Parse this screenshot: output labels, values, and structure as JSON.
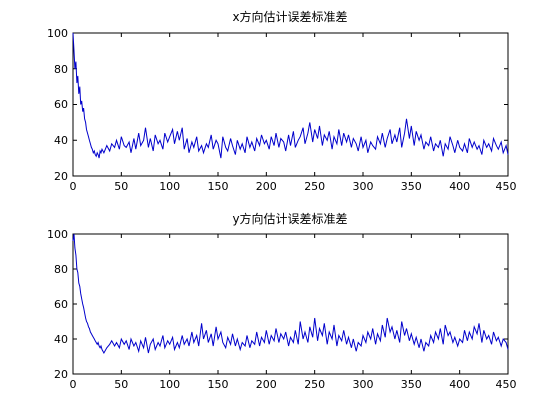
{
  "figure": {
    "background": "#ffffff"
  },
  "chart_data": [
    {
      "type": "line",
      "title": "x方向估计误差标准差",
      "xlim": [
        0,
        450
      ],
      "ylim": [
        20,
        100
      ],
      "x_ticks": [
        0,
        50,
        100,
        150,
        200,
        250,
        300,
        350,
        400,
        450
      ],
      "y_ticks": [
        20,
        40,
        60,
        80,
        100
      ],
      "x_tick_labels": [
        "0",
        "50",
        "100",
        "150",
        "200",
        "250",
        "300",
        "350",
        "400",
        "450"
      ],
      "y_tick_labels": [
        "20",
        "40",
        "60",
        "80",
        "100"
      ],
      "grid": false,
      "line_color": "#0000cc",
      "series": [
        {
          "x": [
            0,
            1,
            2,
            3,
            4,
            5,
            6,
            7,
            8,
            9,
            10,
            11,
            12,
            13,
            14,
            15,
            16,
            17,
            18,
            19,
            20,
            21,
            22,
            23,
            24,
            25,
            26,
            27,
            28,
            29,
            30,
            32,
            35,
            38,
            40,
            43,
            45,
            48,
            50,
            53,
            55,
            58,
            60,
            63,
            65,
            68,
            70,
            73,
            75,
            78,
            80,
            83,
            85,
            88,
            90,
            93,
            95,
            98,
            100,
            103,
            105,
            108,
            110,
            113,
            115,
            118,
            120,
            123,
            125,
            128,
            130,
            133,
            135,
            138,
            140,
            143,
            145,
            148,
            150,
            153,
            155,
            158,
            160,
            163,
            165,
            168,
            170,
            173,
            175,
            178,
            180,
            183,
            185,
            188,
            190,
            193,
            195,
            198,
            200,
            203,
            205,
            208,
            210,
            213,
            215,
            218,
            220,
            223,
            225,
            228,
            230,
            233,
            235,
            238,
            240,
            243,
            245,
            248,
            250,
            253,
            255,
            258,
            260,
            263,
            265,
            268,
            270,
            273,
            275,
            278,
            280,
            283,
            285,
            288,
            290,
            293,
            295,
            298,
            300,
            303,
            305,
            308,
            310,
            313,
            315,
            318,
            320,
            323,
            325,
            328,
            330,
            333,
            335,
            338,
            340,
            343,
            345,
            348,
            350,
            353,
            355,
            358,
            360,
            363,
            365,
            368,
            370,
            373,
            375,
            378,
            380,
            383,
            385,
            388,
            390,
            393,
            395,
            398,
            400,
            403,
            405,
            408,
            410,
            413,
            415,
            418,
            420,
            423,
            425,
            428,
            430,
            433,
            435,
            438,
            440,
            443,
            445,
            448,
            450
          ],
          "y": [
            100,
            90,
            80,
            84,
            72,
            76,
            66,
            70,
            60,
            62,
            56,
            58,
            52,
            50,
            46,
            44,
            42,
            40,
            38,
            36,
            35,
            33,
            34,
            32,
            31,
            33,
            32,
            30,
            34,
            33,
            35,
            33,
            37,
            34,
            38,
            36,
            40,
            35,
            42,
            37,
            36,
            39,
            33,
            41,
            35,
            44,
            37,
            40,
            47,
            36,
            41,
            34,
            43,
            38,
            40,
            35,
            44,
            39,
            42,
            46,
            38,
            45,
            40,
            47,
            35,
            41,
            33,
            39,
            36,
            42,
            34,
            37,
            33,
            38,
            36,
            43,
            35,
            40,
            38,
            30,
            42,
            36,
            34,
            41,
            37,
            32,
            40,
            35,
            38,
            33,
            42,
            36,
            39,
            34,
            41,
            37,
            43,
            38,
            40,
            35,
            42,
            37,
            44,
            36,
            41,
            39,
            34,
            43,
            37,
            45,
            36,
            40,
            42,
            47,
            38,
            44,
            50,
            39,
            46,
            41,
            48,
            37,
            43,
            40,
            45,
            35,
            42,
            38,
            46,
            37,
            44,
            39,
            43,
            36,
            41,
            38,
            34,
            42,
            36,
            40,
            33,
            39,
            37,
            35,
            42,
            38,
            44,
            36,
            41,
            46,
            38,
            43,
            39,
            47,
            36,
            44,
            52,
            41,
            48,
            37,
            45,
            40,
            43,
            35,
            39,
            37,
            42,
            34,
            38,
            36,
            40,
            31,
            38,
            35,
            42,
            37,
            33,
            40,
            36,
            34,
            38,
            33,
            41,
            36,
            39,
            35,
            37,
            32,
            40,
            36,
            38,
            34,
            41,
            37,
            35,
            39,
            33,
            37,
            32
          ]
        }
      ]
    },
    {
      "type": "line",
      "title": "y方向估计误差标准差",
      "xlim": [
        0,
        450
      ],
      "ylim": [
        20,
        100
      ],
      "x_ticks": [
        0,
        50,
        100,
        150,
        200,
        250,
        300,
        350,
        400,
        450
      ],
      "y_ticks": [
        20,
        40,
        60,
        80,
        100
      ],
      "x_tick_labels": [
        "0",
        "50",
        "100",
        "150",
        "200",
        "250",
        "300",
        "350",
        "400",
        "450"
      ],
      "y_tick_labels": [
        "20",
        "40",
        "60",
        "80",
        "100"
      ],
      "grid": false,
      "line_color": "#0000cc",
      "series": [
        {
          "x": [
            0,
            1,
            2,
            3,
            4,
            5,
            6,
            7,
            8,
            9,
            10,
            11,
            12,
            13,
            14,
            15,
            16,
            17,
            18,
            19,
            20,
            21,
            22,
            23,
            24,
            25,
            26,
            27,
            28,
            29,
            30,
            32,
            35,
            38,
            40,
            43,
            45,
            48,
            50,
            53,
            55,
            58,
            60,
            63,
            65,
            68,
            70,
            73,
            75,
            78,
            80,
            83,
            85,
            88,
            90,
            93,
            95,
            98,
            100,
            103,
            105,
            108,
            110,
            113,
            115,
            118,
            120,
            123,
            125,
            128,
            130,
            133,
            135,
            138,
            140,
            143,
            145,
            148,
            150,
            153,
            155,
            158,
            160,
            163,
            165,
            168,
            170,
            173,
            175,
            178,
            180,
            183,
            185,
            188,
            190,
            193,
            195,
            198,
            200,
            203,
            205,
            208,
            210,
            213,
            215,
            218,
            220,
            223,
            225,
            228,
            230,
            233,
            235,
            238,
            240,
            243,
            245,
            248,
            250,
            253,
            255,
            258,
            260,
            263,
            265,
            268,
            270,
            273,
            275,
            278,
            280,
            283,
            285,
            288,
            290,
            293,
            295,
            298,
            300,
            303,
            305,
            308,
            310,
            313,
            315,
            318,
            320,
            323,
            325,
            328,
            330,
            333,
            335,
            338,
            340,
            343,
            345,
            348,
            350,
            353,
            355,
            358,
            360,
            363,
            365,
            368,
            370,
            373,
            375,
            378,
            380,
            383,
            385,
            388,
            390,
            393,
            395,
            398,
            400,
            403,
            405,
            408,
            410,
            413,
            415,
            418,
            420,
            423,
            425,
            428,
            430,
            433,
            435,
            438,
            440,
            443,
            445,
            448,
            450
          ],
          "y": [
            96,
            100,
            92,
            88,
            80,
            78,
            72,
            70,
            66,
            63,
            60,
            58,
            55,
            52,
            50,
            49,
            47,
            46,
            44,
            43,
            42,
            41,
            40,
            39,
            38,
            37,
            38,
            36,
            35,
            36,
            34,
            32,
            35,
            37,
            39,
            36,
            38,
            35,
            40,
            37,
            39,
            34,
            40,
            36,
            38,
            33,
            39,
            35,
            41,
            32,
            37,
            40,
            34,
            38,
            36,
            42,
            35,
            39,
            37,
            41,
            34,
            38,
            35,
            42,
            37,
            40,
            36,
            44,
            38,
            42,
            36,
            49,
            40,
            45,
            38,
            43,
            36,
            47,
            40,
            44,
            38,
            35,
            41,
            37,
            43,
            36,
            40,
            34,
            38,
            36,
            42,
            35,
            39,
            37,
            44,
            36,
            41,
            38,
            45,
            37,
            42,
            39,
            46,
            38,
            43,
            40,
            44,
            36,
            41,
            38,
            45,
            37,
            50,
            40,
            44,
            38,
            47,
            41,
            52,
            39,
            46,
            42,
            49,
            37,
            44,
            40,
            48,
            36,
            42,
            39,
            45,
            37,
            41,
            35,
            40,
            33,
            38,
            36,
            42,
            38,
            44,
            40,
            46,
            37,
            43,
            39,
            48,
            41,
            52,
            44,
            47,
            40,
            45,
            38,
            50,
            42,
            46,
            39,
            43,
            37,
            41,
            35,
            40,
            33,
            38,
            36,
            42,
            38,
            44,
            40,
            46,
            37,
            48,
            42,
            44,
            38,
            41,
            36,
            40,
            38,
            45,
            39,
            44,
            40,
            47,
            43,
            49,
            38,
            45,
            40,
            42,
            37,
            44,
            39,
            41,
            36,
            40,
            38,
            34
          ]
        }
      ]
    }
  ]
}
